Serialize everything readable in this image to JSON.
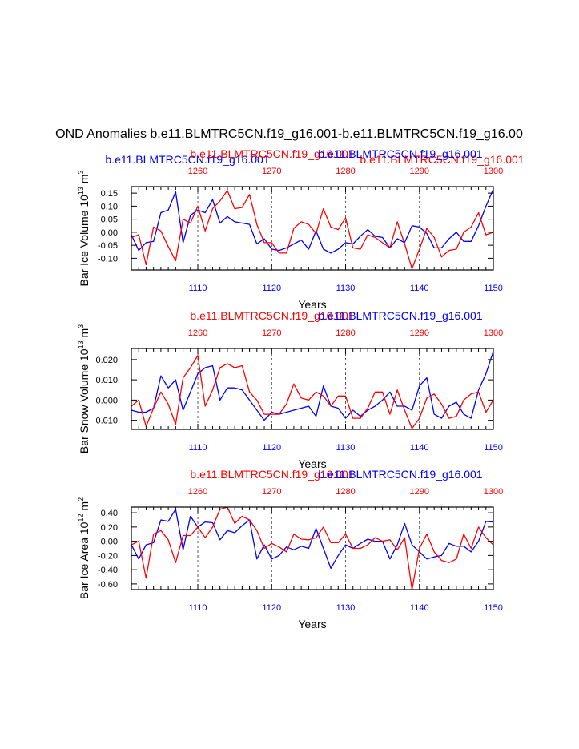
{
  "page_title": "OND Anomalies b.e11.BLMTRC5CN.f19_g16.001-b.e11.BLMTRC5CN.f19_g16.00",
  "colors": {
    "red": "#ff0000",
    "blue": "#0000ff",
    "axis": "#000000",
    "grid": "#333333"
  },
  "legend": {
    "blue_left": "b.e11.BLMTRC5CN.f19_g16.001",
    "red_left": "b.e11.BLMTRC5CN.f19_g16.001",
    "blue_right": "b.e11.BLMTRC5CN.f19_g16.001",
    "red_right": "b.e11.BLMTRC5CN.f19_g16.001"
  },
  "chart_data": [
    {
      "type": "line",
      "title_red": "b.e11.BLMTRC5CN.f19_g16.001",
      "title_blue": "b.e11.BLMTRC5CN.f19_g16.001",
      "ylabel": "Bar Ice Volume 10",
      "ylabel_exp": "13",
      "ylabel_unit": "m",
      "ylabel_unit_exp": "3",
      "xlabel": "Years",
      "xlim": [
        1101,
        1150
      ],
      "top_xlim": [
        1251,
        1300
      ],
      "ylim": [
        -0.145,
        0.175
      ],
      "yticks": [
        -0.1,
        -0.05,
        0.0,
        0.05,
        0.1,
        0.15
      ],
      "ytick_labels": [
        "-0.10",
        "-0.05",
        "0.00",
        "0.05",
        "0.10",
        "0.15"
      ],
      "xticks": [
        1110,
        1120,
        1130,
        1140,
        1150
      ],
      "xtick_labels": [
        "1110",
        "1120",
        "1130",
        "1140",
        "1150"
      ],
      "top_xticks": [
        1260,
        1270,
        1280,
        1290,
        1300
      ],
      "top_xtick_labels": [
        "1260",
        "1270",
        "1280",
        "1290",
        "1300"
      ],
      "vlines": [
        1110,
        1120,
        1130,
        1140
      ],
      "series": [
        {
          "name": "b.e11.BLMTRC5CN.f19_g16.001",
          "color": "blue",
          "x_start": 1101,
          "values": [
            -0.01,
            -0.07,
            -0.04,
            -0.035,
            0.075,
            0.085,
            0.155,
            -0.04,
            0.065,
            0.085,
            0.075,
            0.125,
            0.035,
            0.06,
            0.04,
            0.035,
            0.03,
            -0.045,
            -0.025,
            -0.065,
            -0.07,
            -0.06,
            -0.045,
            -0.03,
            -0.065,
            0.005,
            -0.065,
            -0.08,
            -0.065,
            -0.04,
            -0.045,
            -0.015,
            0.01,
            -0.015,
            -0.02,
            -0.06,
            -0.025,
            -0.04,
            0.025,
            0.02,
            -0.005,
            -0.06,
            -0.06,
            -0.025,
            0.0,
            -0.035,
            -0.035,
            0.025,
            0.1,
            0.165
          ]
        },
        {
          "name": "b.e11.BLMTRC5CN.f19_g16.001",
          "color": "red",
          "x_start": 1101,
          "values": [
            -0.02,
            -0.01,
            -0.125,
            0.02,
            0.005,
            -0.055,
            -0.11,
            0.05,
            0.035,
            0.1,
            0.005,
            0.09,
            0.12,
            0.16,
            0.09,
            0.095,
            0.145,
            0.03,
            -0.04,
            -0.04,
            -0.08,
            -0.08,
            0.015,
            0.04,
            0.03,
            -0.005,
            0.09,
            0.02,
            0.01,
            0.055,
            -0.06,
            -0.065,
            -0.01,
            -0.02,
            -0.04,
            -0.06,
            0.04,
            -0.045,
            -0.14,
            -0.065,
            0.015,
            -0.02,
            -0.095,
            -0.07,
            -0.065,
            0.0,
            0.02,
            0.075,
            -0.01,
            0.0
          ]
        }
      ]
    },
    {
      "type": "line",
      "title_red": "b.e11.BLMTRC5CN.f19_g16.001",
      "title_blue": "b.e11.BLMTRC5CN.f19_g16.001",
      "ylabel": "Bar Snow Volume 10",
      "ylabel_exp": "13",
      "ylabel_unit": "m",
      "ylabel_unit_exp": "3",
      "xlabel": "Years",
      "xlim": [
        1101,
        1150
      ],
      "top_xlim": [
        1251,
        1300
      ],
      "ylim": [
        -0.0145,
        0.0255
      ],
      "yticks": [
        -0.01,
        0.0,
        0.01,
        0.02
      ],
      "ytick_labels": [
        "-0.010",
        "0.000",
        "0.010",
        "0.020"
      ],
      "xticks": [
        1110,
        1120,
        1130,
        1140,
        1150
      ],
      "xtick_labels": [
        "1110",
        "1120",
        "1130",
        "1140",
        "1150"
      ],
      "top_xticks": [
        1260,
        1270,
        1280,
        1290,
        1300
      ],
      "top_xtick_labels": [
        "1260",
        "1270",
        "1280",
        "1290",
        "1300"
      ],
      "vlines": [
        1110,
        1120,
        1130,
        1140
      ],
      "series": [
        {
          "name": "b.e11.BLMTRC5CN.f19_g16.001",
          "color": "blue",
          "x_start": 1101,
          "values": [
            -0.005,
            -0.006,
            -0.006,
            -0.004,
            0.012,
            0.006,
            0.01,
            -0.005,
            0.004,
            0.013,
            0.016,
            0.017,
            0.0,
            0.006,
            0.006,
            0.005,
            0.0,
            -0.005,
            -0.01,
            -0.006,
            -0.007,
            -0.006,
            -0.005,
            -0.004,
            -0.003,
            -0.008,
            0.007,
            -0.003,
            -0.004,
            -0.009,
            -0.005,
            -0.008,
            -0.005,
            -0.003,
            0.0,
            0.004,
            -0.003,
            -0.003,
            -0.005,
            0.007,
            0.011,
            -0.007,
            -0.009,
            -0.003,
            -0.001,
            -0.007,
            -0.009,
            0.005,
            0.013,
            0.024
          ]
        },
        {
          "name": "b.e11.BLMTRC5CN.f19_g16.001",
          "color": "red",
          "x_start": 1101,
          "values": [
            -0.003,
            0.0,
            -0.013,
            -0.004,
            0.004,
            -0.002,
            -0.012,
            0.011,
            0.016,
            0.022,
            -0.003,
            0.005,
            0.016,
            0.018,
            0.016,
            0.017,
            0.004,
            0.0,
            -0.007,
            -0.007,
            -0.007,
            -0.002,
            0.008,
            0.001,
            0.0,
            0.004,
            0.002,
            -0.003,
            0.002,
            0.002,
            -0.009,
            -0.009,
            -0.004,
            0.004,
            0.004,
            -0.007,
            0.005,
            -0.005,
            -0.014,
            -0.009,
            0.001,
            0.003,
            -0.002,
            -0.009,
            -0.008,
            0.0,
            0.003,
            0.004,
            -0.006,
            0.0
          ]
        }
      ]
    },
    {
      "type": "line",
      "title_red": "b.e11.BLMTRC5CN.f19_g16.001",
      "title_blue": "b.e11.BLMTRC5CN.f19_g16.001",
      "ylabel": "Bar Ice Area 10",
      "ylabel_exp": "12",
      "ylabel_unit": "m",
      "ylabel_unit_exp": "2",
      "xlabel": "Years",
      "xlim": [
        1101,
        1150
      ],
      "top_xlim": [
        1251,
        1300
      ],
      "ylim": [
        -0.68,
        0.48
      ],
      "yticks": [
        -0.6,
        -0.4,
        -0.2,
        0.0,
        0.2,
        0.4
      ],
      "ytick_labels": [
        "-0.60",
        "-0.40",
        "-0.20",
        "0.00",
        "0.20",
        "0.40"
      ],
      "xticks": [
        1110,
        1120,
        1130,
        1140,
        1150
      ],
      "xtick_labels": [
        "1110",
        "1120",
        "1130",
        "1140",
        "1150"
      ],
      "top_xticks": [
        1260,
        1270,
        1280,
        1290,
        1300
      ],
      "top_xtick_labels": [
        "1260",
        "1270",
        "1280",
        "1290",
        "1300"
      ],
      "vlines": [
        1110,
        1120,
        1130,
        1140
      ],
      "series": [
        {
          "name": "b.e11.BLMTRC5CN.f19_g16.001",
          "color": "blue",
          "x_start": 1101,
          "values": [
            -0.05,
            -0.25,
            -0.05,
            -0.02,
            0.3,
            0.28,
            0.45,
            -0.12,
            0.35,
            0.2,
            0.27,
            0.26,
            0.02,
            0.15,
            0.12,
            0.22,
            0.3,
            -0.25,
            -0.05,
            -0.25,
            -0.2,
            -0.08,
            -0.12,
            -0.07,
            -0.1,
            0.18,
            -0.1,
            -0.38,
            -0.2,
            -0.05,
            -0.1,
            -0.03,
            0.03,
            0.0,
            0.0,
            -0.25,
            -0.05,
            0.25,
            -0.05,
            -0.15,
            -0.25,
            -0.22,
            -0.2,
            -0.03,
            -0.07,
            -0.07,
            -0.15,
            0.0,
            0.28,
            0.27
          ]
        },
        {
          "name": "b.e11.BLMTRC5CN.f19_g16.001",
          "color": "red",
          "x_start": 1101,
          "values": [
            -0.05,
            0.0,
            -0.52,
            0.1,
            0.15,
            0.02,
            -0.3,
            0.08,
            0.08,
            0.2,
            0.05,
            0.2,
            0.45,
            0.48,
            0.25,
            0.35,
            0.3,
            0.15,
            -0.1,
            -0.03,
            -0.08,
            -0.15,
            0.1,
            0.03,
            0.02,
            0.05,
            0.2,
            -0.02,
            -0.02,
            0.1,
            -0.1,
            -0.1,
            -0.05,
            0.05,
            0.0,
            0.02,
            -0.12,
            0.05,
            -0.68,
            -0.1,
            0.1,
            -0.15,
            -0.27,
            -0.3,
            -0.25,
            0.1,
            -0.1,
            0.2,
            0.05,
            -0.05
          ]
        }
      ]
    }
  ]
}
